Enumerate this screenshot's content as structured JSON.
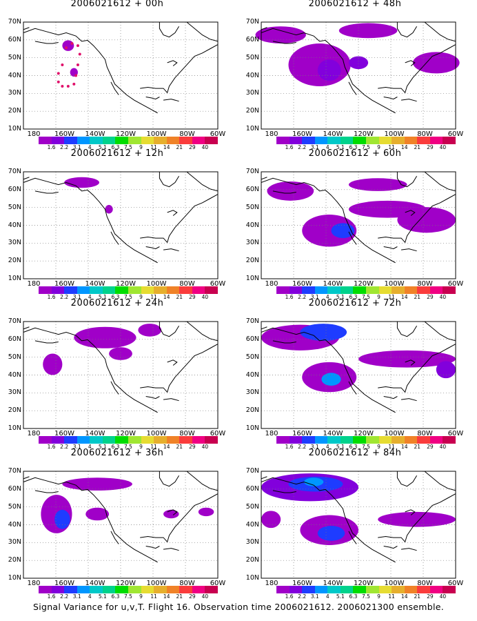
{
  "panels": [
    {
      "title": "2006021612 + 00h"
    },
    {
      "title": "2006021612 + 48h"
    },
    {
      "title": "2006021612 + 12h"
    },
    {
      "title": "2006021612 + 60h"
    },
    {
      "title": "2006021612 + 24h"
    },
    {
      "title": "2006021612 + 72h"
    },
    {
      "title": "2006021612 + 36h"
    },
    {
      "title": "2006021612 + 84h"
    }
  ],
  "axes": {
    "lat_labels": [
      "70N",
      "60N",
      "50N",
      "40N",
      "30N",
      "20N",
      "10N"
    ],
    "lon_labels": [
      "180",
      "160W",
      "140W",
      "120W",
      "100W",
      "80W",
      "60W"
    ]
  },
  "colorbar": {
    "labels": [
      "1.6",
      "2.2",
      "3.1",
      "4",
      "5.1",
      "6.3",
      "7.5",
      "9",
      "11",
      "14",
      "21",
      "29",
      "40"
    ],
    "colors": [
      "#a000c8",
      "#8200dc",
      "#1e3cff",
      "#0096ff",
      "#00c8c8",
      "#00d28c",
      "#00dc00",
      "#a0e632",
      "#e6dc32",
      "#e6af2d",
      "#f08228",
      "#fa3c3c",
      "#f00082"
    ]
  },
  "caption": "Signal Variance for u,v,T. Flight 16. Observation time 2006021612. 2006021300 ensemble."
}
